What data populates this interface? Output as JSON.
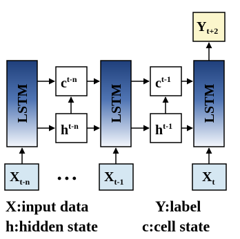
{
  "lstm_label": "LSTM",
  "inputs": [
    {
      "main": "X",
      "sub": "t-n"
    },
    {
      "main": "X",
      "sub": "t-1"
    },
    {
      "main": "X",
      "sub": "t"
    }
  ],
  "cells": [
    {
      "main": "c",
      "sup": "t-n"
    },
    {
      "main": "c",
      "sup": "t-1"
    }
  ],
  "hiddens": [
    {
      "main": "h",
      "sup": "t-n"
    },
    {
      "main": "h",
      "sup": "t-1"
    }
  ],
  "output": {
    "main": "Y",
    "sub": "t+2"
  },
  "ellipsis": "• • •",
  "legend": {
    "x": "X:input data",
    "y": "Y:label",
    "h": "h:hidden state",
    "c": "c:cell state"
  },
  "colors": {
    "lstm_top": "#1f3f7a",
    "lstm_bottom": "#f4f7fc",
    "input_fill": "#d5e7f2",
    "output_fill": "#fbf6cc",
    "stroke": "#000000"
  }
}
